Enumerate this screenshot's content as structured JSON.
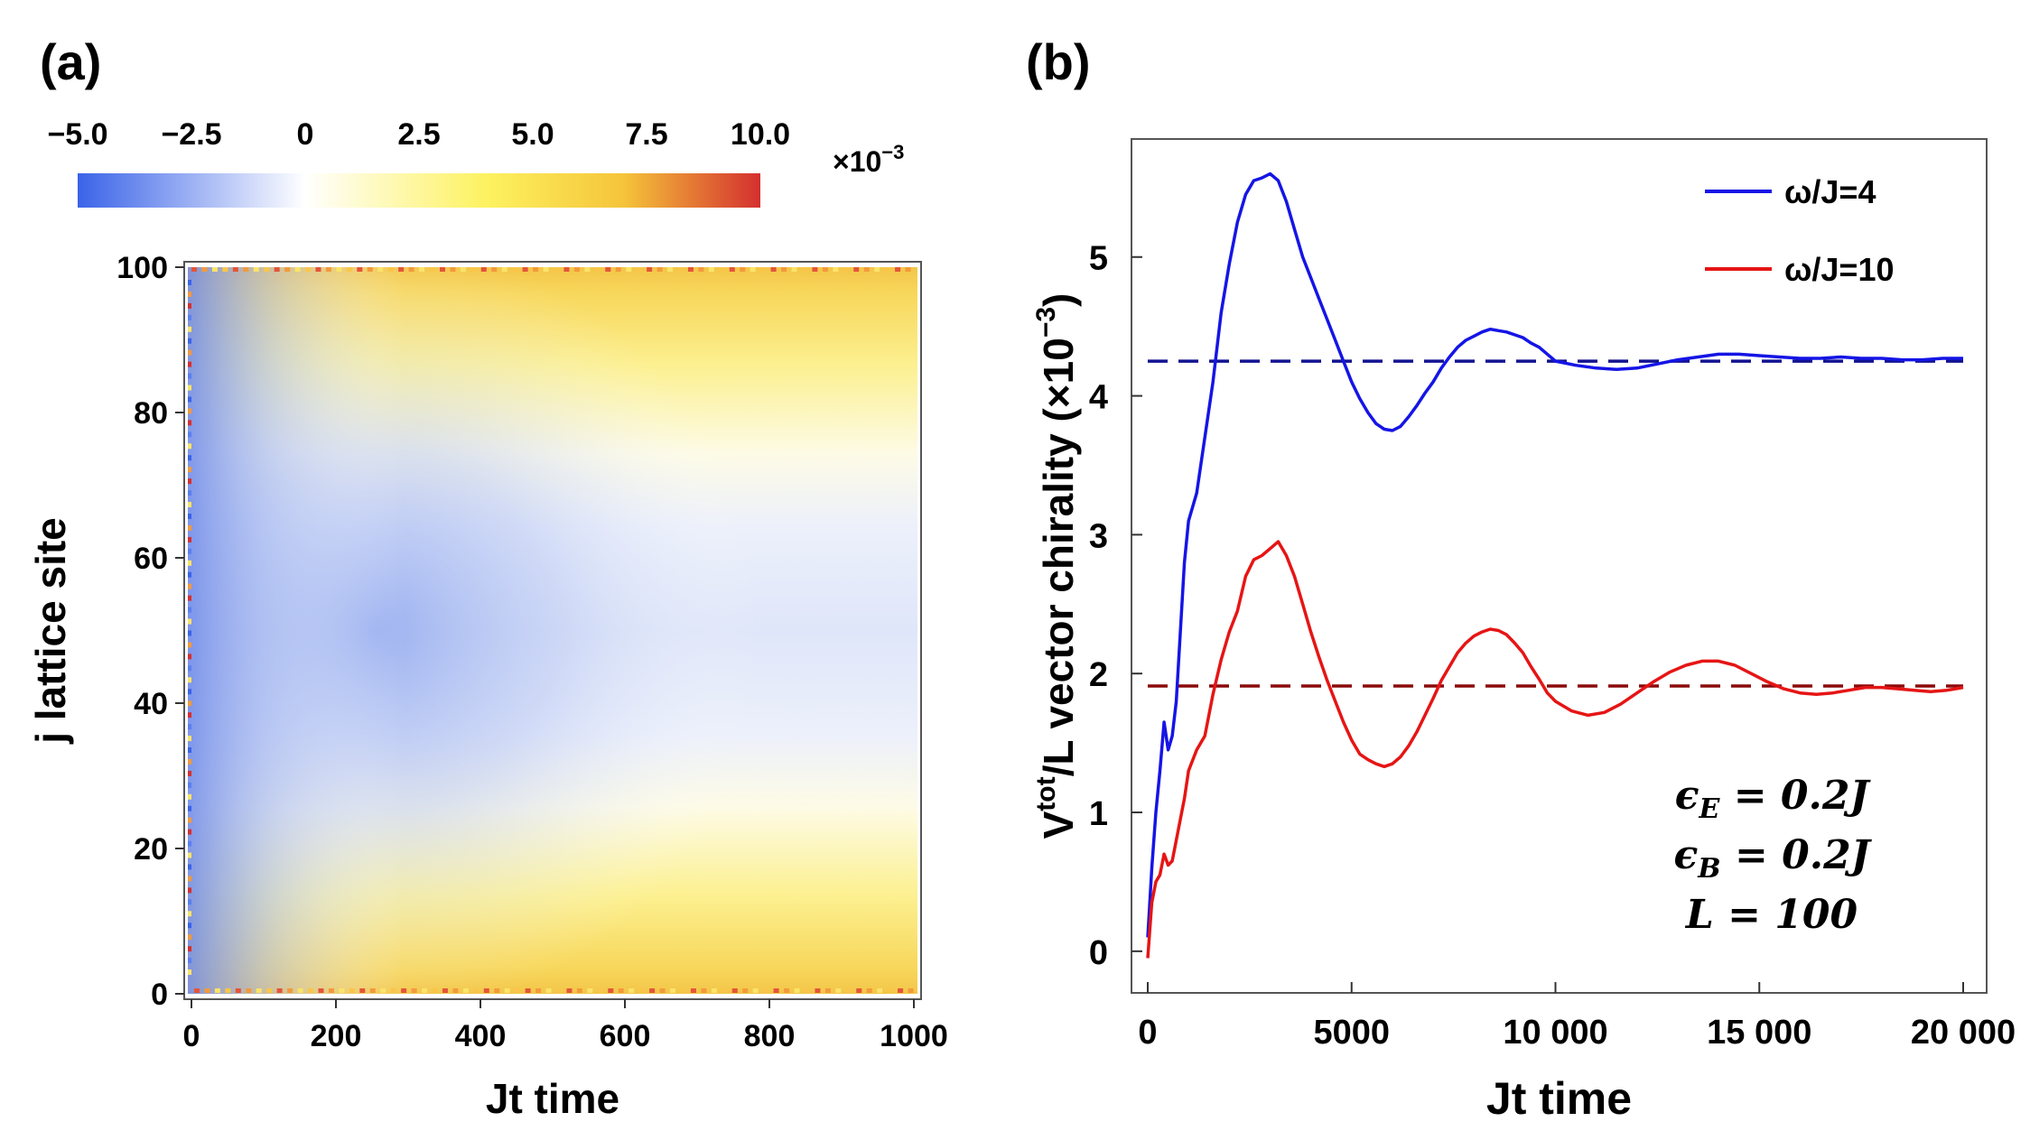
{
  "chart_data": [
    {
      "panel_label": "(a)",
      "type": "heatmap",
      "xlabel": "Jt time",
      "ylabel": "j lattice site",
      "xlim": [
        0,
        1000
      ],
      "ylim": [
        0,
        100
      ],
      "xticks": [
        0,
        200,
        400,
        600,
        800,
        1000
      ],
      "yticks": [
        0,
        20,
        40,
        60,
        80,
        100
      ],
      "colorbar": {
        "range": [
          -5.0,
          10.0
        ],
        "tick_values": [
          -5.0,
          -2.5,
          0,
          2.5,
          5.0,
          7.5,
          10.0
        ],
        "tick_labels": [
          "−5.0",
          "−2.5",
          "0",
          "2.5",
          "5.0",
          "7.5",
          "10.0"
        ],
        "multiplier_base": "×10",
        "multiplier_exp": "−3",
        "colors": [
          "#3a63e8",
          "#ffffff",
          "#fdf260",
          "#f5c43a",
          "#d42f2f"
        ]
      }
    },
    {
      "panel_label": "(b)",
      "type": "line",
      "xlabel": "Jt time",
      "ylabel": {
        "main": "V",
        "sup": "tot",
        "rest": "/L vector chirality (×10",
        "exp": "−3",
        "close": ")"
      },
      "xlim": [
        0,
        20000
      ],
      "ylim": [
        -0.3,
        5.85
      ],
      "xticks": [
        0,
        5000,
        10000,
        15000,
        20000
      ],
      "xtick_labels": [
        "0",
        "5000",
        "10 000",
        "15 000",
        "20 000"
      ],
      "yticks": [
        0,
        1,
        2,
        3,
        4,
        5
      ],
      "series": [
        {
          "name": "ω/J=4",
          "color": "#1515e6",
          "x": [
            0,
            100,
            200,
            300,
            400,
            500,
            600,
            700,
            800,
            900,
            1000,
            1200,
            1400,
            1600,
            1800,
            2000,
            2200,
            2400,
            2600,
            2800,
            3000,
            3200,
            3400,
            3600,
            3800,
            4000,
            4200,
            4400,
            4600,
            4800,
            5000,
            5200,
            5400,
            5600,
            5800,
            6000,
            6200,
            6400,
            6600,
            6800,
            7000,
            7200,
            7400,
            7600,
            7800,
            8000,
            8200,
            8400,
            8600,
            8800,
            9000,
            9200,
            9400,
            9600,
            9800,
            10000,
            10500,
            11000,
            11500,
            12000,
            12500,
            13000,
            13500,
            14000,
            14500,
            15000,
            15500,
            16000,
            16500,
            17000,
            17500,
            18000,
            18500,
            19000,
            19500,
            20000
          ],
          "y": [
            0.1,
            0.6,
            1.0,
            1.3,
            1.65,
            1.45,
            1.55,
            1.8,
            2.3,
            2.8,
            3.1,
            3.3,
            3.7,
            4.1,
            4.6,
            4.95,
            5.25,
            5.45,
            5.55,
            5.57,
            5.6,
            5.55,
            5.4,
            5.2,
            5.0,
            4.85,
            4.7,
            4.55,
            4.4,
            4.25,
            4.1,
            3.98,
            3.88,
            3.8,
            3.76,
            3.75,
            3.78,
            3.85,
            3.93,
            4.02,
            4.1,
            4.2,
            4.28,
            4.35,
            4.4,
            4.43,
            4.46,
            4.48,
            4.47,
            4.46,
            4.44,
            4.42,
            4.38,
            4.35,
            4.3,
            4.25,
            4.22,
            4.2,
            4.19,
            4.2,
            4.23,
            4.26,
            4.28,
            4.3,
            4.3,
            4.29,
            4.28,
            4.27,
            4.27,
            4.28,
            4.27,
            4.27,
            4.26,
            4.26,
            4.27,
            4.27
          ],
          "equilibrium": 4.25
        },
        {
          "name": "ω/J=10",
          "color": "#e61515",
          "x": [
            0,
            100,
            200,
            300,
            400,
            500,
            600,
            700,
            800,
            900,
            1000,
            1200,
            1400,
            1600,
            1800,
            2000,
            2200,
            2400,
            2600,
            2800,
            3000,
            3200,
            3400,
            3600,
            3800,
            4000,
            4200,
            4400,
            4600,
            4800,
            5000,
            5200,
            5400,
            5600,
            5800,
            6000,
            6200,
            6400,
            6600,
            6800,
            7000,
            7200,
            7400,
            7600,
            7800,
            8000,
            8200,
            8400,
            8600,
            8800,
            9000,
            9200,
            9400,
            9600,
            9800,
            10000,
            10400,
            10800,
            11200,
            11600,
            12000,
            12400,
            12800,
            13200,
            13600,
            14000,
            14400,
            14800,
            15200,
            15600,
            16000,
            16400,
            16800,
            17200,
            17600,
            18000,
            18400,
            18800,
            19200,
            19600,
            20000
          ],
          "y": [
            -0.05,
            0.35,
            0.5,
            0.55,
            0.7,
            0.62,
            0.65,
            0.8,
            0.95,
            1.1,
            1.3,
            1.45,
            1.55,
            1.85,
            2.1,
            2.3,
            2.45,
            2.7,
            2.82,
            2.85,
            2.9,
            2.95,
            2.85,
            2.7,
            2.5,
            2.3,
            2.12,
            1.95,
            1.8,
            1.65,
            1.52,
            1.42,
            1.38,
            1.35,
            1.33,
            1.35,
            1.4,
            1.48,
            1.58,
            1.7,
            1.82,
            1.95,
            2.05,
            2.15,
            2.22,
            2.27,
            2.3,
            2.32,
            2.31,
            2.28,
            2.22,
            2.15,
            2.05,
            1.96,
            1.86,
            1.8,
            1.73,
            1.7,
            1.72,
            1.78,
            1.86,
            1.94,
            2.01,
            2.06,
            2.09,
            2.09,
            2.06,
            2.0,
            1.94,
            1.89,
            1.86,
            1.85,
            1.86,
            1.88,
            1.9,
            1.9,
            1.89,
            1.88,
            1.87,
            1.88,
            1.9
          ],
          "equilibrium": 1.9
        }
      ],
      "dashed_lines": [
        {
          "y": 4.25,
          "color": "#121290"
        },
        {
          "y": 1.91,
          "color": "#8b0a0a"
        }
      ],
      "annotations": [
        {
          "sym": "ϵ",
          "sub": "E",
          "rest": " = 0.2J"
        },
        {
          "sym": "ϵ",
          "sub": "B",
          "rest": " = 0.2J"
        },
        {
          "sym": "L",
          "sub": "",
          "rest": " = 100"
        }
      ]
    }
  ]
}
